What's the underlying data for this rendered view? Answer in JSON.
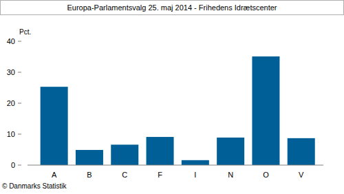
{
  "chart_data": {
    "type": "bar",
    "title": "Europa-Parlamentsvalg 25. maj 2014 - Frihedens Idrætscenter",
    "ylabel": "Pct.",
    "annotation": "© Danmarks Statistik",
    "categories": [
      "A",
      "B",
      "C",
      "F",
      "I",
      "N",
      "O",
      "V"
    ],
    "values": [
      25.3,
      4.9,
      6.6,
      9.1,
      1.6,
      8.9,
      35.1,
      8.7
    ],
    "color": "#005f96",
    "ylim": [
      0,
      40
    ],
    "yticks": [
      0,
      10,
      20,
      30,
      40
    ],
    "grid": false
  }
}
